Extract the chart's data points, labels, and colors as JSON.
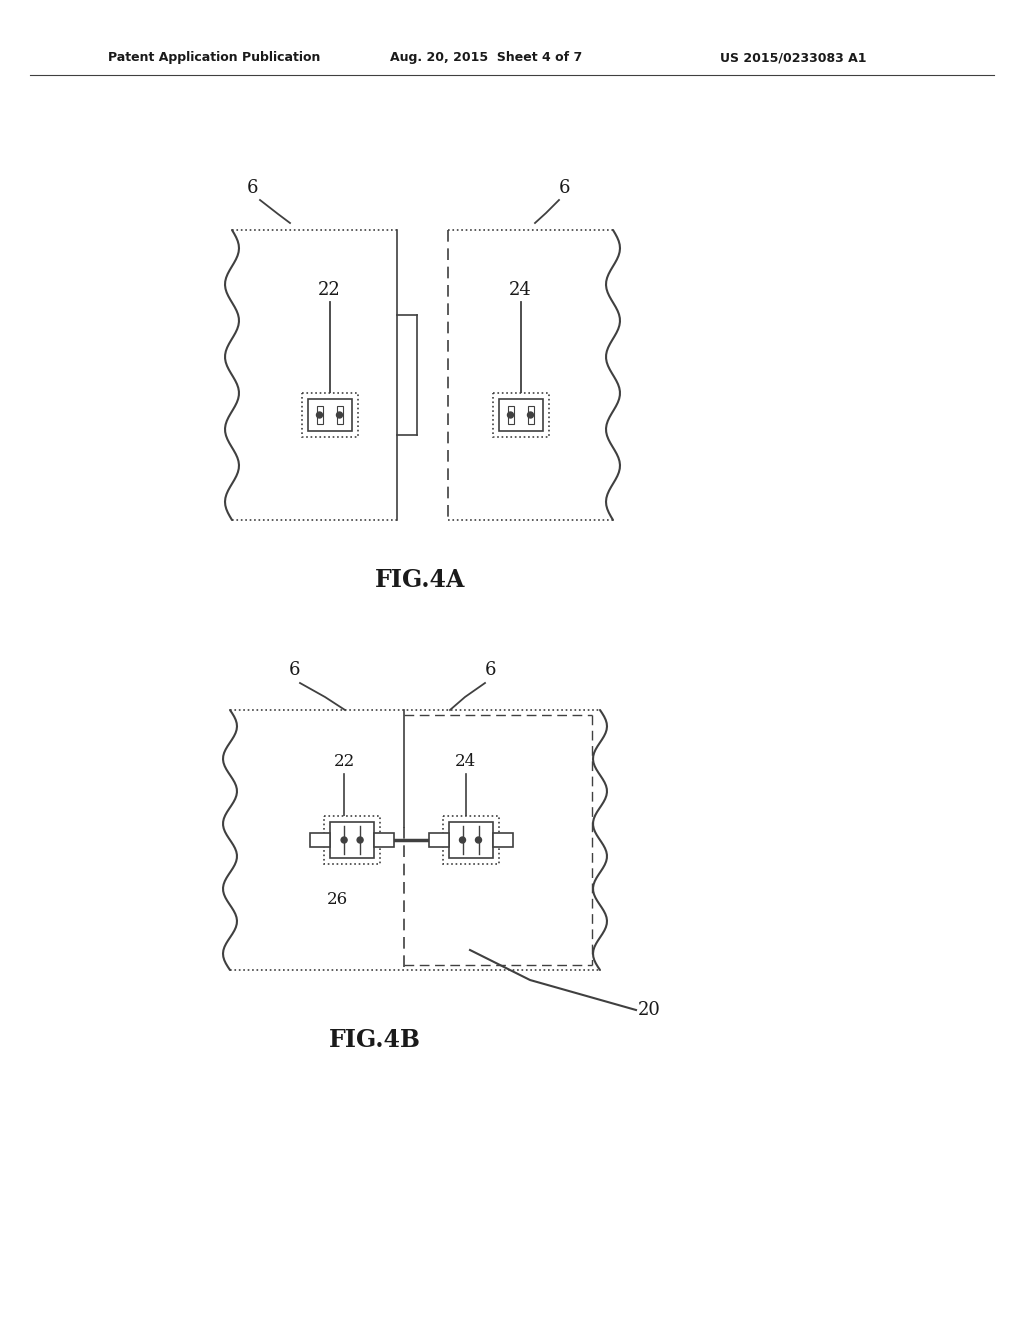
{
  "bg_color": "#ffffff",
  "line_color": "#404040",
  "header_text": "Patent Application Publication",
  "header_date": "Aug. 20, 2015  Sheet 4 of 7",
  "header_patent": "US 2015/0233083 A1",
  "fig4a_label": "FIG.4A",
  "fig4b_label": "FIG.4B",
  "font_color": "#1a1a1a"
}
